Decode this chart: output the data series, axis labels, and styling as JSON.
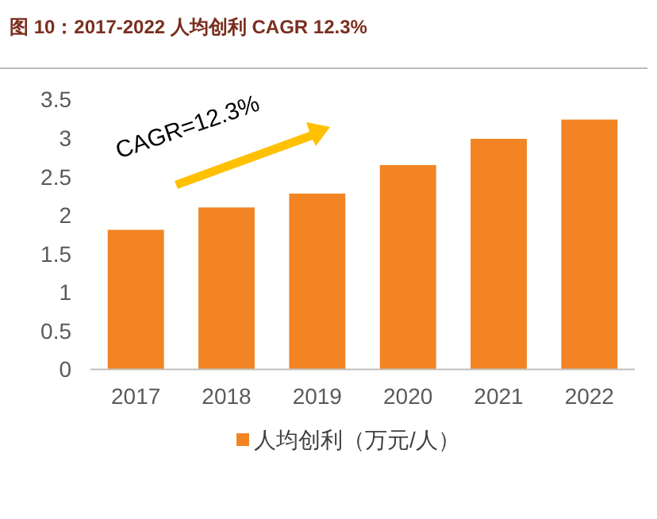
{
  "chart_data": {
    "type": "bar",
    "title": "图 10：2017-2022 人均创利 CAGR 12.3%",
    "categories": [
      "2017",
      "2018",
      "2019",
      "2020",
      "2021",
      "2022"
    ],
    "series": [
      {
        "name": "人均创利（万元/人）",
        "color": "#f28424",
        "values": [
          1.81,
          2.1,
          2.28,
          2.65,
          2.99,
          3.24
        ]
      }
    ],
    "ylim": [
      0,
      3.5
    ],
    "yticks": [
      0,
      0.5,
      1,
      1.5,
      2,
      2.5,
      3,
      3.5
    ],
    "grid": false,
    "legend": "bottom",
    "annotations": [
      "CAGR=12.3%"
    ]
  }
}
